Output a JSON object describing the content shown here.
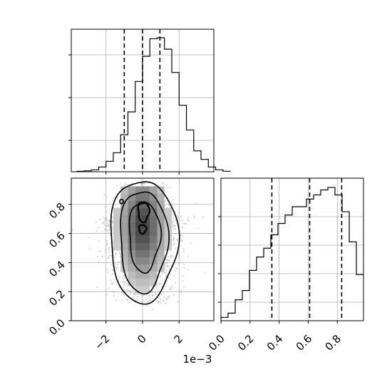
{
  "chart_data": [
    {
      "panel": "top-left",
      "type": "histogram",
      "parameter_index": 0,
      "xlim": [
        -3.9,
        3.9
      ],
      "x_scale_offset": "1e-3",
      "bins_x0": -3.6,
      "bin_width": 0.4,
      "counts": [
        1,
        2,
        4,
        10,
        22,
        40,
        78,
        126,
        190,
        243,
        280,
        282,
        258,
        209,
        140,
        88,
        44,
        26,
        10,
        4,
        1
      ],
      "ymax": 300,
      "quantile_lines": [
        -1.0,
        0.0,
        0.95
      ],
      "xtick_values": [
        -2,
        0,
        2
      ],
      "ytick_marks": [
        0.22,
        0.52,
        0.82
      ],
      "grid": true,
      "color": "#000000"
    },
    {
      "panel": "bottom-left",
      "type": "2d-histogram-contour",
      "xlim": [
        -3.9,
        3.9
      ],
      "ylim": [
        0.0,
        0.98
      ],
      "x_scale_offset": "1e-3",
      "x_center": 0.0,
      "x_spread": 0.95,
      "y_mode": 0.72,
      "y_low": 0.12,
      "y_high": 0.95,
      "contour_levels": 4,
      "xtick_labels": [
        "−2",
        "0",
        "2"
      ],
      "xtick_values": [
        -2,
        0,
        2
      ],
      "ytick_labels": [
        "0.0",
        "0.2",
        "0.4",
        "0.6",
        "0.8"
      ],
      "ytick_values": [
        0.0,
        0.2,
        0.4,
        0.6,
        0.8
      ],
      "point_color": "#b0b0b0",
      "grid": true
    },
    {
      "panel": "bottom-right",
      "type": "histogram",
      "parameter_index": 1,
      "xlim": [
        0.0,
        0.98
      ],
      "bins_x0": 0.0,
      "bin_width": 0.049,
      "counts": [
        8,
        18,
        50,
        72,
        120,
        152,
        173,
        205,
        232,
        252,
        272,
        272,
        290,
        300,
        312,
        318,
        300,
        260,
        188,
        110
      ],
      "ymax": 340,
      "quantile_lines": [
        0.35,
        0.61,
        0.83
      ],
      "xtick_labels": [
        "0.0",
        "0.2",
        "0.4",
        "0.6",
        "0.8"
      ],
      "xtick_values": [
        0.0,
        0.2,
        0.4,
        0.6,
        0.8
      ],
      "ytick_marks": [
        0.13,
        0.33,
        0.53,
        0.73
      ],
      "grid": true,
      "color": "#000000"
    }
  ],
  "offset_label": "1e−3"
}
